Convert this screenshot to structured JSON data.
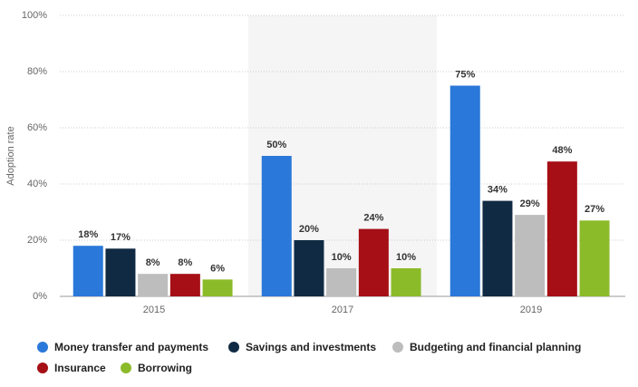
{
  "chart_data": {
    "type": "bar",
    "y_label": "Adoption rate",
    "categories": [
      "2015",
      "2017",
      "2019"
    ],
    "series": [
      {
        "name": "Money transfer and payments",
        "color": "#2a78d9",
        "values": [
          18,
          50,
          75
        ],
        "value_labels": [
          "18%",
          "50%",
          "75%"
        ]
      },
      {
        "name": "Savings and investments",
        "color": "#102a43",
        "values": [
          17,
          20,
          34
        ],
        "value_labels": [
          "17%",
          "20%",
          "34%"
        ]
      },
      {
        "name": "Budgeting and financial planning",
        "color": "#bdbdbd",
        "values": [
          8,
          10,
          29
        ],
        "value_labels": [
          "8%",
          "10%",
          "29%"
        ]
      },
      {
        "name": "Insurance",
        "color": "#a50f15",
        "values": [
          8,
          24,
          48
        ],
        "value_labels": [
          "8%",
          "24%",
          "48%"
        ]
      },
      {
        "name": "Borrowing",
        "color": "#8cbb2a",
        "values": [
          6,
          10,
          27
        ],
        "value_labels": [
          "6%",
          "10%",
          "27%"
        ]
      }
    ],
    "ylim": [
      0,
      100
    ],
    "yticks": [
      {
        "value": 0,
        "label": "0%"
      },
      {
        "value": 20,
        "label": "20%"
      },
      {
        "value": 40,
        "label": "40%"
      },
      {
        "value": 60,
        "label": "60%"
      },
      {
        "value": 80,
        "label": "80%"
      },
      {
        "value": 100,
        "label": "100%"
      }
    ],
    "grid": true,
    "legend": "bottom"
  }
}
